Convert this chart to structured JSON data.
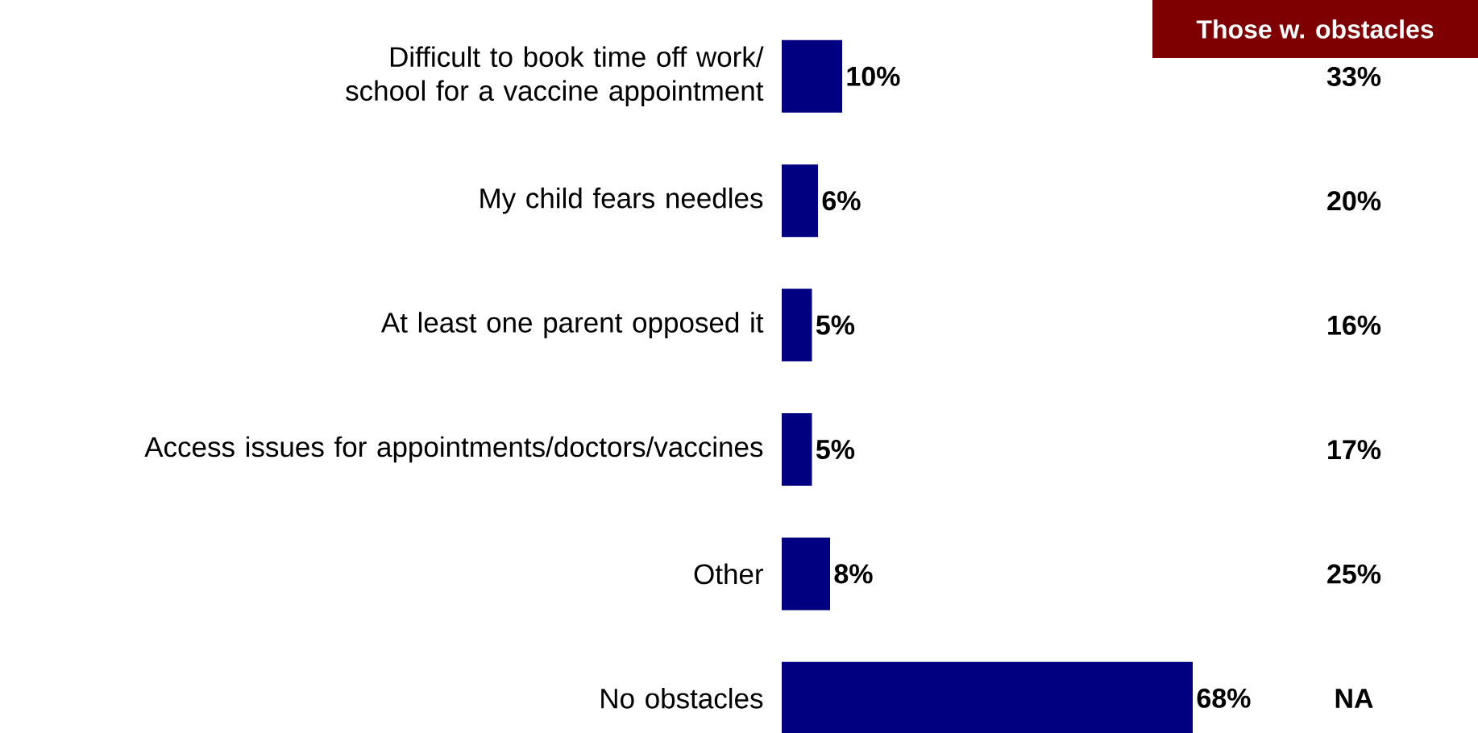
{
  "chart_data": [
    {
      "type": "bar",
      "orientation": "horizontal",
      "color": "#000080",
      "categories": [
        "Difficult to book time off work/ school for a vaccine appointment",
        "My child fears needles",
        "At least one parent opposed it",
        "Access issues for appointments/doctors/vaccines",
        "Other",
        "No obstacles"
      ],
      "values": [
        10,
        6,
        5,
        5,
        8,
        68
      ],
      "value_labels": [
        "10%",
        "6%",
        "5%",
        "5%",
        "8%",
        "68%"
      ]
    },
    {
      "type": "other",
      "title": "Those w. obstacles",
      "annotations": [
        "33%",
        "20%",
        "16%",
        "17%",
        "25%",
        "NA"
      ]
    }
  ]
}
